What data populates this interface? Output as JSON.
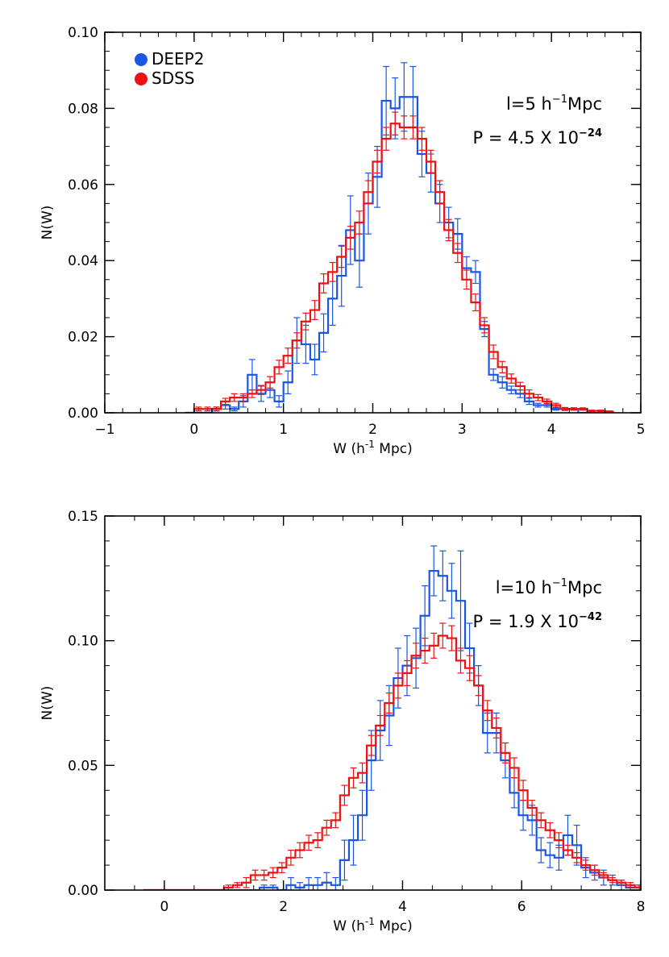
{
  "chart_data": [
    {
      "type": "step",
      "xlabel_main": "W (h",
      "xlabel_exp": "-1",
      "xlabel_tail": " Mpc)",
      "ylabel": "N(W)",
      "xlim": [
        -1,
        5
      ],
      "ylim": [
        0,
        0.1
      ],
      "xticks": [
        -1,
        0,
        1,
        2,
        3,
        4,
        5
      ],
      "xtick_labels": [
        "−1",
        "0",
        "1",
        "2",
        "3",
        "4",
        "5"
      ],
      "yticks": [
        0,
        0.02,
        0.04,
        0.06,
        0.08,
        0.1
      ],
      "ytick_labels": [
        "0.00",
        "0.02",
        "0.04",
        "0.06",
        "0.08",
        "0.10"
      ],
      "x_minor_step": 0.2,
      "y_minor_step": 0.005,
      "annotation_l": {
        "main": "l=5 h",
        "exp": "−1",
        "tail": "Mpc"
      },
      "annotation_p": {
        "main": "P = 4.5 X 10",
        "exp": "−24"
      },
      "legend": [
        {
          "label": "DEEP2",
          "color": "#1a56e6"
        },
        {
          "label": "SDSS",
          "color": "#ee1111"
        }
      ],
      "series": [
        {
          "name": "DEEP2",
          "color": "#1a56e6",
          "bin_width": 0.1,
          "x_start": -0.1,
          "values": [
            0.0,
            0.0,
            0.0,
            0.001,
            0.002,
            0.001,
            0.003,
            0.01,
            0.005,
            0.006,
            0.003,
            0.008,
            0.019,
            0.018,
            0.014,
            0.021,
            0.03,
            0.036,
            0.048,
            0.04,
            0.055,
            0.062,
            0.082,
            0.08,
            0.083,
            0.083,
            0.068,
            0.063,
            0.055,
            0.05,
            0.047,
            0.038,
            0.037,
            0.022,
            0.01,
            0.008,
            0.006,
            0.005,
            0.003,
            0.002,
            0.002,
            0.001,
            0.001,
            0.001,
            0.0,
            0.0
          ],
          "errors": [
            0,
            0,
            0,
            0.0005,
            0.001,
            0.0005,
            0.0015,
            0.004,
            0.002,
            0.002,
            0.0015,
            0.003,
            0.006,
            0.005,
            0.004,
            0.005,
            0.007,
            0.008,
            0.009,
            0.007,
            0.008,
            0.008,
            0.009,
            0.008,
            0.009,
            0.008,
            0.006,
            0.005,
            0.005,
            0.004,
            0.004,
            0.003,
            0.003,
            0.002,
            0.0015,
            0.0015,
            0.001,
            0.001,
            0.0008,
            0.0005,
            0.0005,
            0.0003,
            0.0003,
            0.0003,
            0,
            0
          ]
        },
        {
          "name": "SDSS",
          "color": "#ee1111",
          "bin_width": 0.1,
          "x_start": -0.1,
          "values": [
            0.0,
            0.001,
            0.001,
            0.001,
            0.003,
            0.004,
            0.004,
            0.005,
            0.006,
            0.008,
            0.012,
            0.015,
            0.019,
            0.024,
            0.027,
            0.034,
            0.037,
            0.041,
            0.046,
            0.05,
            0.058,
            0.066,
            0.072,
            0.076,
            0.075,
            0.075,
            0.072,
            0.066,
            0.058,
            0.048,
            0.042,
            0.035,
            0.029,
            0.023,
            0.016,
            0.012,
            0.009,
            0.007,
            0.005,
            0.004,
            0.003,
            0.002,
            0.001,
            0.001,
            0.001,
            0.0005,
            0.0005,
            0.0003
          ],
          "errors": [
            0,
            0.0005,
            0.0005,
            0.0005,
            0.0008,
            0.001,
            0.001,
            0.001,
            0.0012,
            0.0015,
            0.0018,
            0.002,
            0.002,
            0.0022,
            0.0025,
            0.0025,
            0.0025,
            0.0028,
            0.003,
            0.003,
            0.003,
            0.003,
            0.003,
            0.003,
            0.003,
            0.003,
            0.003,
            0.003,
            0.003,
            0.0028,
            0.0025,
            0.0025,
            0.0022,
            0.002,
            0.0018,
            0.0015,
            0.0012,
            0.001,
            0.001,
            0.0008,
            0.0006,
            0.0005,
            0.0004,
            0.0003,
            0.0003,
            0.0002,
            0.0002,
            0.0002
          ]
        }
      ]
    },
    {
      "type": "step",
      "xlabel_main": "W (h",
      "xlabel_exp": "-1",
      "xlabel_tail": " Mpc)",
      "ylabel": "N(W)",
      "xlim": [
        -1,
        8
      ],
      "ylim": [
        0,
        0.15
      ],
      "xticks": [
        0,
        2,
        4,
        6,
        8
      ],
      "xtick_labels": [
        "0",
        "2",
        "4",
        "6",
        "8"
      ],
      "yticks": [
        0,
        0.05,
        0.1,
        0.15
      ],
      "ytick_labels": [
        "0.00",
        "0.05",
        "0.10",
        "0.15"
      ],
      "x_minor_step": 0.5,
      "y_minor_step": 0.01,
      "annotation_l": {
        "main": "l=10 h",
        "exp": "−1",
        "tail": "Mpc"
      },
      "annotation_p": {
        "main": "P = 1.9 X 10",
        "exp": "−42"
      },
      "series": [
        {
          "name": "DEEP2",
          "color": "#1a56e6",
          "bin_width": 0.15,
          "x_start": -0.35,
          "values": [
            0,
            0,
            0,
            0,
            0,
            0,
            0,
            0,
            0,
            0,
            0,
            0,
            0,
            0.001,
            0.001,
            0.0,
            0.002,
            0.001,
            0.002,
            0.002,
            0.003,
            0.002,
            0.012,
            0.02,
            0.03,
            0.052,
            0.064,
            0.07,
            0.085,
            0.09,
            0.093,
            0.11,
            0.128,
            0.126,
            0.12,
            0.116,
            0.097,
            0.082,
            0.063,
            0.063,
            0.052,
            0.039,
            0.03,
            0.028,
            0.016,
            0.014,
            0.013,
            0.022,
            0.018,
            0.009,
            0.007,
            0.005,
            0.004,
            0.002,
            0.001,
            0.001
          ],
          "errors": [
            0,
            0,
            0,
            0,
            0,
            0,
            0,
            0,
            0,
            0,
            0,
            0,
            0,
            0.001,
            0.001,
            0,
            0.003,
            0.002,
            0.003,
            0.003,
            0.004,
            0.003,
            0.008,
            0.01,
            0.01,
            0.012,
            0.012,
            0.012,
            0.012,
            0.012,
            0.012,
            0.012,
            0.01,
            0.01,
            0.011,
            0.02,
            0.01,
            0.008,
            0.008,
            0.008,
            0.007,
            0.006,
            0.006,
            0.006,
            0.005,
            0.005,
            0.005,
            0.008,
            0.008,
            0.004,
            0.003,
            0.003,
            0.002,
            0.002,
            0.001,
            0.001
          ]
        },
        {
          "name": "SDSS",
          "color": "#ee1111",
          "bin_width": 0.15,
          "x_start": -0.35,
          "values": [
            0.0,
            0.0,
            0.0,
            0.0,
            0.0,
            0.0,
            0.0,
            0.0,
            0.0,
            0.001,
            0.002,
            0.003,
            0.006,
            0.006,
            0.007,
            0.009,
            0.013,
            0.016,
            0.019,
            0.02,
            0.025,
            0.028,
            0.038,
            0.045,
            0.047,
            0.058,
            0.066,
            0.075,
            0.082,
            0.087,
            0.094,
            0.096,
            0.098,
            0.102,
            0.101,
            0.092,
            0.089,
            0.082,
            0.072,
            0.065,
            0.055,
            0.049,
            0.04,
            0.033,
            0.028,
            0.024,
            0.02,
            0.016,
            0.013,
            0.01,
            0.008,
            0.006,
            0.004,
            0.003,
            0.002,
            0.001,
            0.001,
            0.001
          ],
          "errors": [
            0,
            0,
            0,
            0,
            0,
            0,
            0,
            0,
            0,
            0.001,
            0.001,
            0.002,
            0.002,
            0.002,
            0.002,
            0.002,
            0.003,
            0.003,
            0.003,
            0.003,
            0.003,
            0.003,
            0.004,
            0.004,
            0.004,
            0.004,
            0.004,
            0.004,
            0.005,
            0.005,
            0.005,
            0.005,
            0.005,
            0.005,
            0.005,
            0.005,
            0.005,
            0.004,
            0.004,
            0.004,
            0.004,
            0.004,
            0.004,
            0.003,
            0.003,
            0.003,
            0.003,
            0.002,
            0.002,
            0.002,
            0.002,
            0.001,
            0.001,
            0.001,
            0.001,
            0.001,
            0.001,
            0.001
          ]
        }
      ]
    }
  ]
}
